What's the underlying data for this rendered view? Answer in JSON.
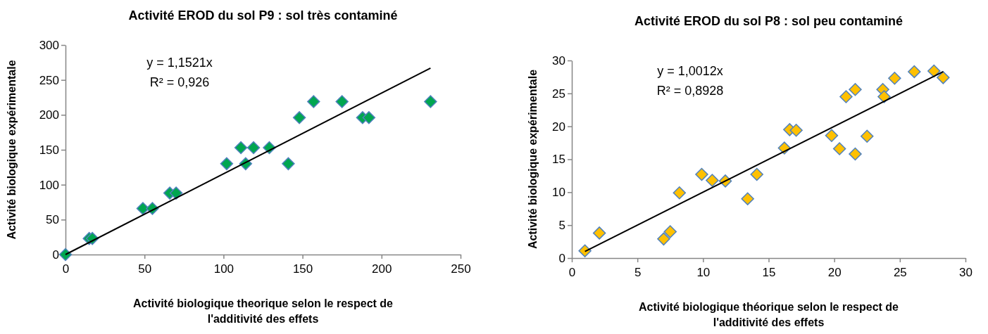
{
  "chart_data": [
    {
      "type": "scatter",
      "title": "Activité EROD du sol P9 : sol très contaminé",
      "xlabel": "Activité biologique theorique selon le respect de l'additivité des effets",
      "ylabel": "Activité biologique expérimentale",
      "xlim": [
        0,
        250
      ],
      "xticks": [
        0,
        50,
        100,
        150,
        200,
        250
      ],
      "ylim": [
        0,
        300
      ],
      "yticks": [
        0,
        50,
        100,
        150,
        200,
        250,
        300
      ],
      "grid": false,
      "annotations": [
        "y = 1,1521x",
        "R² = 0,926"
      ],
      "series": [
        {
          "marker": "diamond",
          "color": "#00a650",
          "x": [
            0,
            15,
            17,
            49,
            55,
            66,
            70,
            102,
            111,
            114,
            119,
            129,
            141,
            148,
            157,
            175,
            188,
            192,
            231
          ],
          "values": [
            0,
            23,
            23,
            66,
            66,
            88,
            88,
            130,
            153,
            130,
            153,
            153,
            130,
            196,
            219,
            219,
            196,
            196,
            219
          ]
        },
        {
          "type": "line",
          "marker": "none",
          "color": "#000000",
          "x": [
            0,
            231
          ],
          "values": [
            0,
            267
          ]
        }
      ]
    },
    {
      "type": "scatter",
      "title": "Activité EROD du sol P8 : sol peu contaminé",
      "xlabel": "Activité biologique théorique selon le respect de l'additivité des effets",
      "ylabel": "Activité biologique expérimentale",
      "xlim": [
        0,
        30
      ],
      "xticks": [
        0,
        5,
        10,
        15,
        20,
        25,
        30
      ],
      "ylim": [
        0,
        30
      ],
      "yticks": [
        0,
        5,
        10,
        15,
        20,
        25,
        30
      ],
      "grid": false,
      "annotations": [
        "y = 1,0012x",
        "R² = 0,8928"
      ],
      "series": [
        {
          "marker": "diamond",
          "color": "#ffc000",
          "x": [
            1.0,
            2.1,
            7.0,
            7.5,
            8.2,
            9.9,
            10.7,
            11.7,
            13.4,
            14.1,
            16.2,
            16.6,
            17.1,
            19.8,
            20.4,
            20.9,
            21.6,
            21.6,
            22.5,
            23.7,
            23.8,
            24.6,
            26.1,
            27.6,
            28.3
          ],
          "values": [
            1.1,
            3.8,
            2.9,
            4.0,
            9.9,
            12.7,
            11.8,
            11.7,
            9.0,
            12.7,
            16.7,
            19.5,
            19.4,
            18.6,
            16.6,
            24.5,
            15.8,
            25.6,
            18.5,
            25.6,
            24.5,
            27.3,
            28.3,
            28.4,
            27.4
          ]
        },
        {
          "type": "line",
          "marker": "none",
          "color": "#000000",
          "x": [
            1.0,
            28.3
          ],
          "values": [
            1.0,
            28.3
          ]
        }
      ]
    }
  ]
}
